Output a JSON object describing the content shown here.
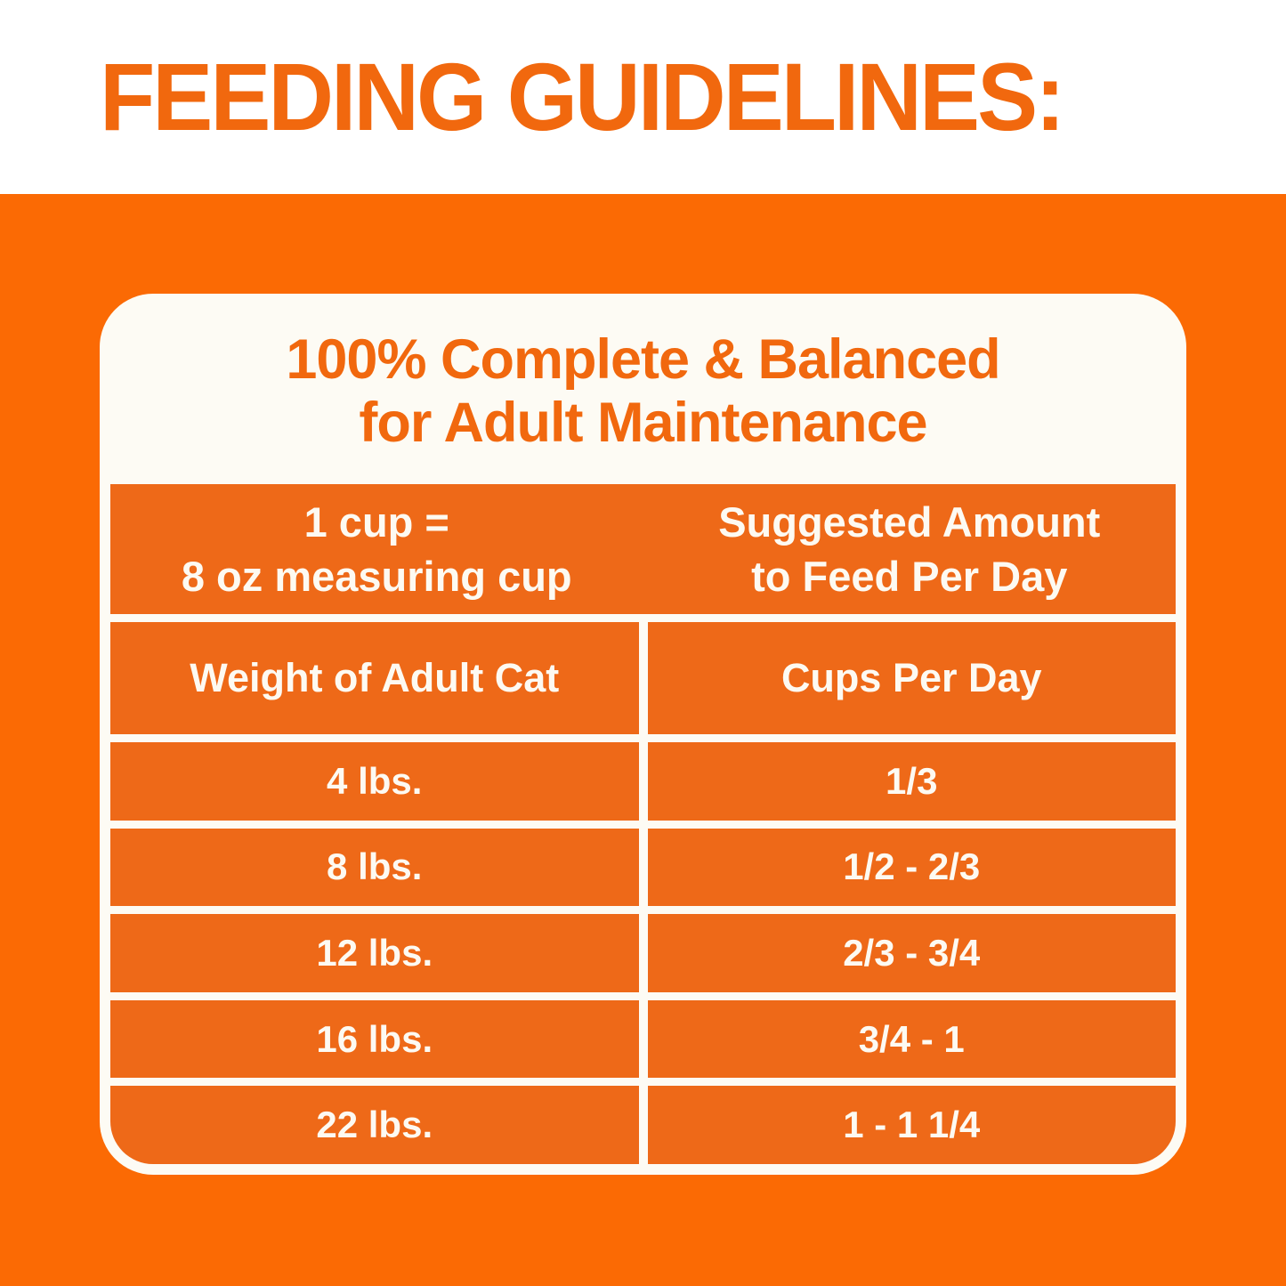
{
  "colors": {
    "page_orange": "#FB6A04",
    "cell_orange": "#EE6918",
    "accent_orange": "#F1680E",
    "card_white": "#FDFBF4",
    "text_white": "#FDFAF2"
  },
  "banner": {
    "title": "FEEDING GUIDELINES:"
  },
  "card": {
    "heading": {
      "line1": "100% Complete & Balanced",
      "line2": "for Adult Maintenance"
    },
    "measure_note": {
      "line1": "1 cup =",
      "line2": "8 oz measuring cup"
    },
    "amount_note": {
      "line1": "Suggested Amount",
      "line2": "to Feed Per Day"
    }
  },
  "table": {
    "columns": [
      "Weight of Adult Cat",
      "Cups Per Day"
    ],
    "rows": [
      {
        "weight": "4 lbs.",
        "cups": "1/3"
      },
      {
        "weight": "8 lbs.",
        "cups": "1/2 - 2/3"
      },
      {
        "weight": "12 lbs.",
        "cups": "2/3 - 3/4"
      },
      {
        "weight": "16 lbs.",
        "cups": "3/4 - 1"
      },
      {
        "weight": "22 lbs.",
        "cups": "1 - 1 1/4"
      }
    ]
  },
  "chart_data": {
    "type": "table",
    "title": "100% Complete & Balanced for Adult Maintenance",
    "note": "1 cup = 8 oz measuring cup; Suggested Amount to Feed Per Day",
    "columns": [
      "Weight of Adult Cat",
      "Cups Per Day"
    ],
    "rows": [
      [
        "4 lbs.",
        "1/3"
      ],
      [
        "8 lbs.",
        "1/2 - 2/3"
      ],
      [
        "12 lbs.",
        "2/3 - 3/4"
      ],
      [
        "16 lbs.",
        "3/4 - 1"
      ],
      [
        "22 lbs.",
        "1 - 1 1/4"
      ]
    ]
  }
}
